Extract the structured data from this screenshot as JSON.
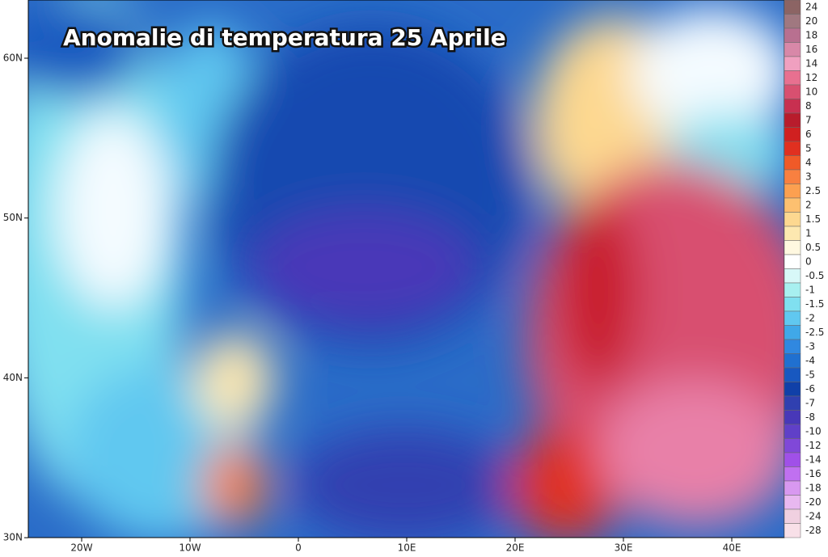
{
  "title": "Anomalie di temperatura 25 Aprile",
  "axes": {
    "lat": [
      "60N",
      "50N",
      "40N",
      "30N"
    ],
    "lon": [
      "20W",
      "10W",
      "0",
      "10E",
      "20E",
      "30E",
      "40E"
    ]
  },
  "colorbar": {
    "labels": [
      "24",
      "20",
      "18",
      "16",
      "14",
      "12",
      "10",
      "8",
      "7",
      "6",
      "5",
      "4",
      "3",
      "2.5",
      "2",
      "1.5",
      "1",
      "0.5",
      "0",
      "-0.5",
      "-1",
      "-1.5",
      "-2",
      "-2.5",
      "-3",
      "-4",
      "-5",
      "-6",
      "-7",
      "-8",
      "-10",
      "-12",
      "-14",
      "-16",
      "-18",
      "-20",
      "-24",
      "-28"
    ],
    "colors": [
      "#8c6464",
      "#a07880",
      "#b87090",
      "#d888a8",
      "#f0a0c0",
      "#e87090",
      "#d85070",
      "#c83050",
      "#b81c2c",
      "#d02020",
      "#e03020",
      "#f05a28",
      "#f88040",
      "#fca050",
      "#fdc070",
      "#fdd890",
      "#fde8b0",
      "#fff8e0",
      "#ffffff",
      "#d8f8f8",
      "#a8f0f0",
      "#80e0f0",
      "#60c8f0",
      "#40a8e8",
      "#3088e0",
      "#2070d0",
      "#1858c0",
      "#1040a8",
      "#3040b0",
      "#4838b8",
      "#6040c8",
      "#8048d8",
      "#a050e8",
      "#c070f0",
      "#d898f0",
      "#e8b8f0",
      "#f0d0e0",
      "#f8e0e8"
    ]
  }
}
